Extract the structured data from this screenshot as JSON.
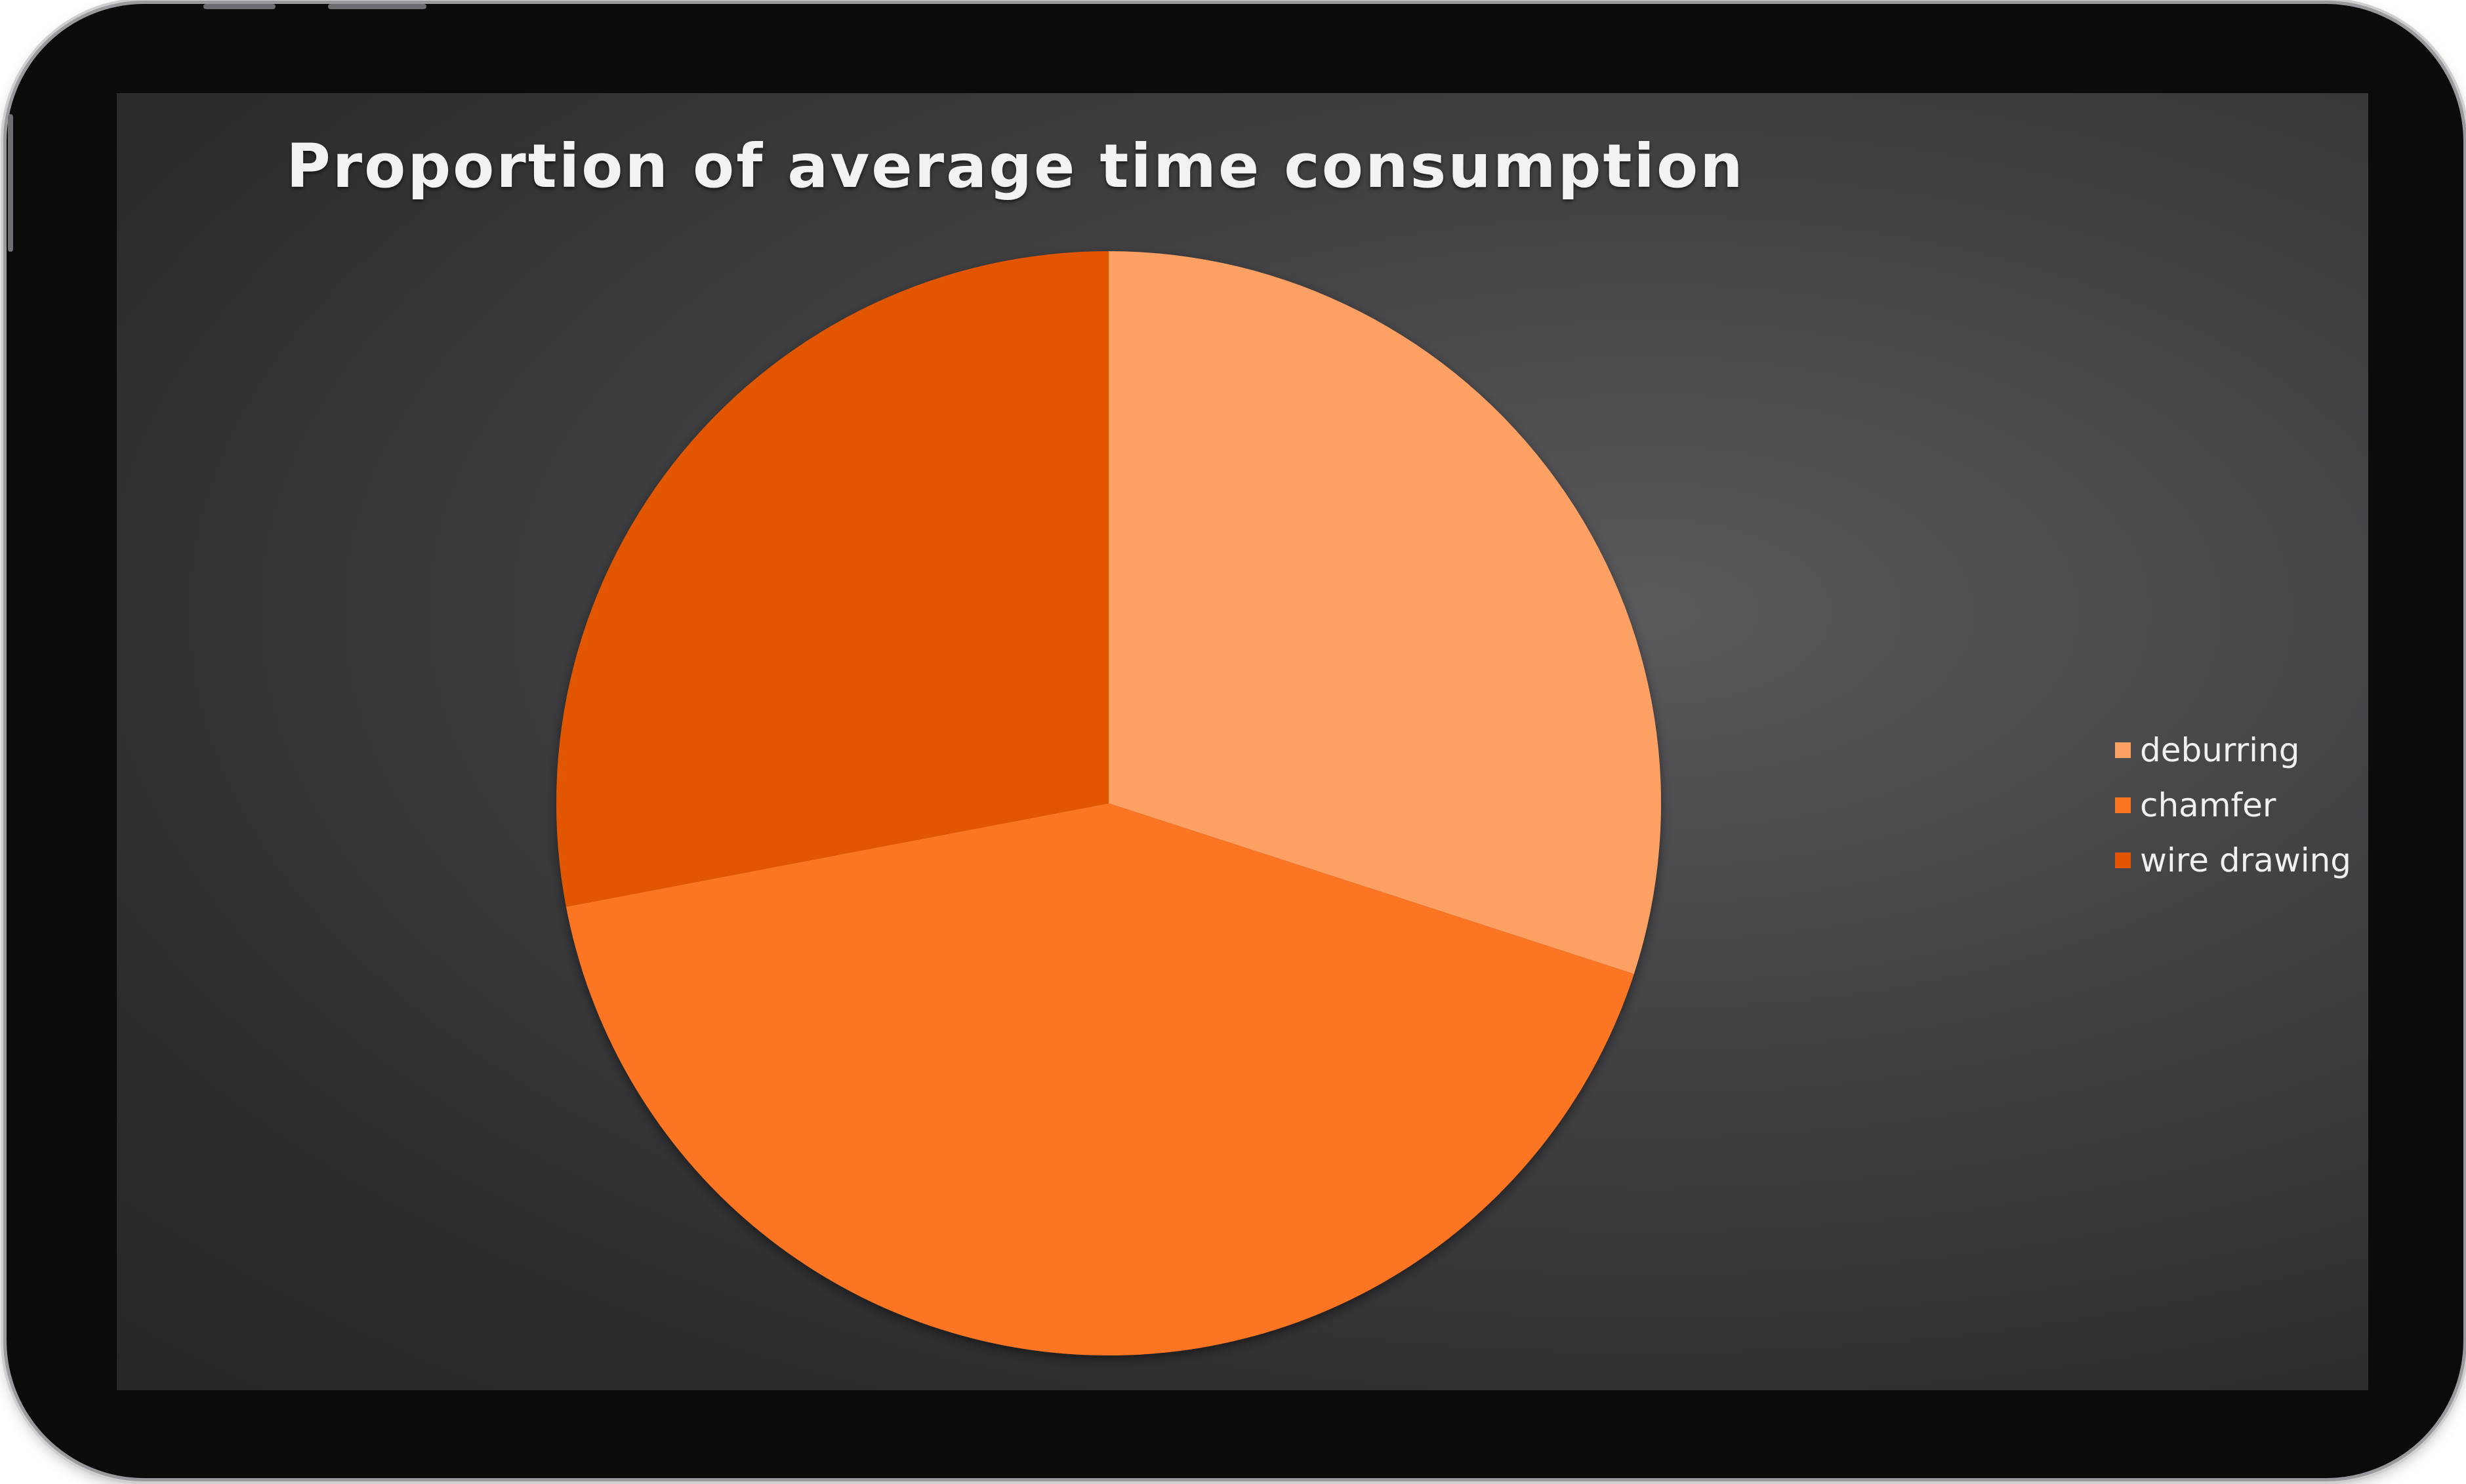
{
  "colors": {
    "deburring": "#fda064",
    "chamfer": "#fb7420",
    "wire_drawing": "#e25603"
  },
  "chart_data": {
    "type": "pie",
    "title": "Proportion of average time consumption",
    "categories": [
      "deburring",
      "chamfer",
      "wire drawing"
    ],
    "values": [
      30,
      42,
      28
    ],
    "legend_position": "right",
    "start_angle": "12 o'clock",
    "direction": "clockwise"
  }
}
